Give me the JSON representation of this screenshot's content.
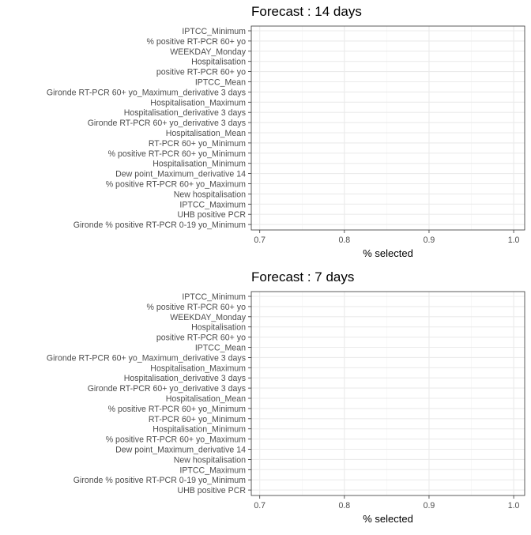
{
  "chart_data": [
    {
      "type": "bar",
      "title": "Forecast : 14 days",
      "xlabel": "% selected",
      "ylabel": "",
      "xlim": [
        0.69,
        1.013
      ],
      "x_ticks": [
        "0.7",
        "0.8",
        "0.9",
        "1.0"
      ],
      "grid": true,
      "categories": [
        "IPTCC_Minimum",
        "% positive RT-PCR 60+ yo",
        "WEEKDAY_Monday",
        "Hospitalisation",
        "positive RT-PCR 60+ yo",
        "IPTCC_Mean",
        "Gironde RT-PCR 60+ yo_Maximum_derivative 3 days",
        "Hospitalisation_Maximum",
        "Hospitalisation_derivative 3 days",
        "Gironde RT-PCR 60+ yo_derivative 3 days",
        "Hospitalisation_Mean",
        "RT-PCR 60+ yo_Minimum",
        "% positive RT-PCR 60+ yo_Minimum",
        "Hospitalisation_Minimum",
        "Dew point_Maximum_derivative 14",
        "% positive RT-PCR 60+ yo_Maximum",
        "New hospitalisation",
        "IPTCC_Maximum",
        "UHB positive PCR",
        "Gironde % positive RT-PCR 0-19 yo_Minimum"
      ]
    },
    {
      "type": "bar",
      "title": "Forecast : 7 days",
      "xlabel": "% selected",
      "ylabel": "",
      "xlim": [
        0.69,
        1.013
      ],
      "x_ticks": [
        "0.7",
        "0.8",
        "0.9",
        "1.0"
      ],
      "grid": true,
      "categories": [
        "IPTCC_Minimum",
        "% positive RT-PCR 60+ yo",
        "WEEKDAY_Monday",
        "Hospitalisation",
        "positive RT-PCR 60+ yo",
        "IPTCC_Mean",
        "Gironde RT-PCR 60+ yo_Maximum_derivative 3 days",
        "Hospitalisation_Maximum",
        "Hospitalisation_derivative 3 days",
        "Gironde RT-PCR 60+ yo_derivative 3 days",
        "Hospitalisation_Mean",
        "% positive RT-PCR 60+ yo_Minimum",
        "RT-PCR 60+ yo_Minimum",
        "Hospitalisation_Minimum",
        "% positive RT-PCR 60+ yo_Maximum",
        "Dew point_Maximum_derivative 14",
        "New hospitalisation",
        "IPTCC_Maximum",
        "Gironde % positive RT-PCR 0-19 yo_Minimum",
        "UHB positive PCR"
      ]
    }
  ]
}
